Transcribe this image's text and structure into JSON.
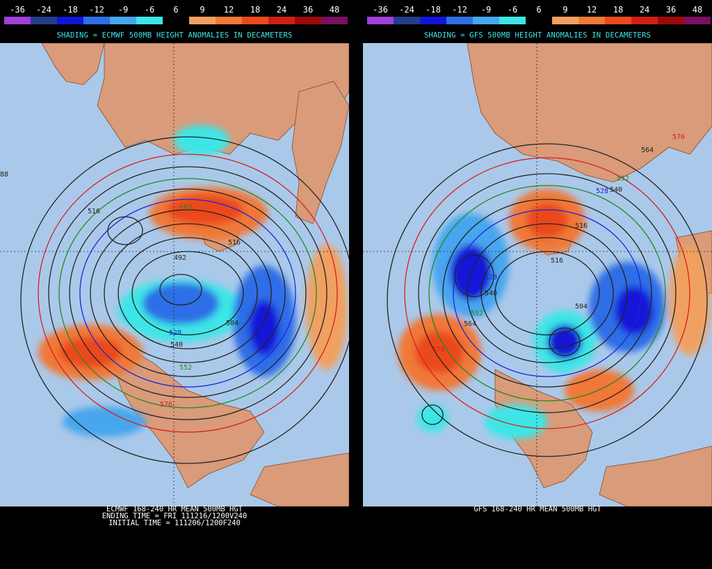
{
  "colors": {
    "ocean": "#aac9ea",
    "land": "#d99b7a",
    "contour": "#222222",
    "contour_528": "#1a24d8",
    "contour_552": "#1f8a1f",
    "contour_576": "#d81e1e",
    "accent_text": "#42e6e6"
  },
  "scale": {
    "labels": [
      "-36",
      "-24",
      "-18",
      "-12",
      "-9",
      "-6",
      "6",
      "9",
      "12",
      "18",
      "24",
      "36",
      "48"
    ],
    "colors": [
      "#a040d8",
      "#283c8c",
      "#1414d8",
      "#2e6ee6",
      "#46a6ee",
      "#3ce6e6",
      "#000000",
      "#f0a060",
      "#f07838",
      "#ea4a1e",
      "#d01e14",
      "#9e0a0a",
      "#7a1060"
    ]
  },
  "panels": [
    {
      "id": "left",
      "shading_note": "SHADING = ECMWF 500MB HEIGHT ANOMALIES IN DECAMETERS",
      "caption": [
        "ECMWF 168-240 HR MEAN 500MB HGT",
        "ENDING TIME = FRI 111216/1200V240",
        "INITIAL TIME = 111206/1200F240"
      ],
      "contour_labels": [
        "552",
        "516",
        "516",
        "492",
        "504",
        "528",
        "540",
        "552",
        "576",
        "88"
      ]
    },
    {
      "id": "right",
      "shading_note": "SHADING = GFS 500MB HEIGHT ANOMALIES IN DECAMETERS",
      "caption": [
        "GFS 168-240 HR MEAN 500MB HGT"
      ],
      "contour_labels": [
        "576",
        "564",
        "552",
        "528",
        "540",
        "516",
        "516",
        "528",
        "540",
        "552",
        "564",
        "504",
        "576"
      ]
    }
  ]
}
